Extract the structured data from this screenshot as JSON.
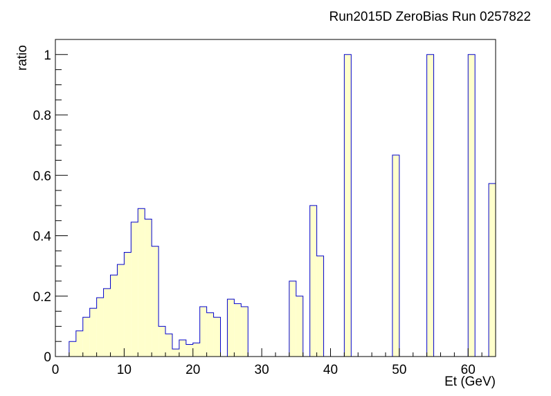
{
  "chart_data": {
    "type": "bar",
    "title": "Run2015D ZeroBias Run 0257822",
    "xlabel": "Et (GeV)",
    "ylabel": "ratio",
    "xlim": [
      0,
      64
    ],
    "ylim": [
      0,
      1.05
    ],
    "bin_width": 1,
    "x_ticks": [
      0,
      10,
      20,
      30,
      40,
      50,
      60
    ],
    "y_ticks": [
      0,
      0.2,
      0.4,
      0.6,
      0.8,
      1
    ],
    "y_tick_labels": [
      "0",
      "0.2",
      "0.4",
      "0.6",
      "0.8",
      "1"
    ],
    "grid": false,
    "fill_color": "#ffffcc",
    "line_color": "#0000cc",
    "bins": [
      {
        "x": 0,
        "y": 0
      },
      {
        "x": 1,
        "y": 0
      },
      {
        "x": 2,
        "y": 0.05
      },
      {
        "x": 3,
        "y": 0.085
      },
      {
        "x": 4,
        "y": 0.13
      },
      {
        "x": 5,
        "y": 0.16
      },
      {
        "x": 6,
        "y": 0.195
      },
      {
        "x": 7,
        "y": 0.225
      },
      {
        "x": 8,
        "y": 0.27
      },
      {
        "x": 9,
        "y": 0.305
      },
      {
        "x": 10,
        "y": 0.345
      },
      {
        "x": 11,
        "y": 0.445
      },
      {
        "x": 12,
        "y": 0.49
      },
      {
        "x": 13,
        "y": 0.455
      },
      {
        "x": 14,
        "y": 0.365
      },
      {
        "x": 15,
        "y": 0.1
      },
      {
        "x": 16,
        "y": 0.075
      },
      {
        "x": 17,
        "y": 0.025
      },
      {
        "x": 18,
        "y": 0.055
      },
      {
        "x": 19,
        "y": 0.04
      },
      {
        "x": 20,
        "y": 0.045
      },
      {
        "x": 21,
        "y": 0.165
      },
      {
        "x": 22,
        "y": 0.145
      },
      {
        "x": 23,
        "y": 0.13
      },
      {
        "x": 24,
        "y": 0
      },
      {
        "x": 25,
        "y": 0.19
      },
      {
        "x": 26,
        "y": 0.175
      },
      {
        "x": 27,
        "y": 0.165
      },
      {
        "x": 28,
        "y": 0
      },
      {
        "x": 29,
        "y": 0
      },
      {
        "x": 30,
        "y": 0
      },
      {
        "x": 31,
        "y": 0
      },
      {
        "x": 32,
        "y": 0
      },
      {
        "x": 33,
        "y": 0
      },
      {
        "x": 34,
        "y": 0.25
      },
      {
        "x": 35,
        "y": 0.2
      },
      {
        "x": 36,
        "y": 0
      },
      {
        "x": 37,
        "y": 0.5
      },
      {
        "x": 38,
        "y": 0.333
      },
      {
        "x": 39,
        "y": 0
      },
      {
        "x": 40,
        "y": 0
      },
      {
        "x": 41,
        "y": 0
      },
      {
        "x": 42,
        "y": 1.0
      },
      {
        "x": 43,
        "y": 0
      },
      {
        "x": 44,
        "y": 0
      },
      {
        "x": 45,
        "y": 0
      },
      {
        "x": 46,
        "y": 0
      },
      {
        "x": 47,
        "y": 0
      },
      {
        "x": 48,
        "y": 0
      },
      {
        "x": 49,
        "y": 0.667
      },
      {
        "x": 50,
        "y": 0
      },
      {
        "x": 51,
        "y": 0
      },
      {
        "x": 52,
        "y": 0
      },
      {
        "x": 53,
        "y": 0
      },
      {
        "x": 54,
        "y": 1.0
      },
      {
        "x": 55,
        "y": 0
      },
      {
        "x": 56,
        "y": 0
      },
      {
        "x": 57,
        "y": 0
      },
      {
        "x": 58,
        "y": 0
      },
      {
        "x": 59,
        "y": 0
      },
      {
        "x": 60,
        "y": 1.0
      },
      {
        "x": 61,
        "y": 0
      },
      {
        "x": 62,
        "y": 0
      },
      {
        "x": 63,
        "y": 0.573
      }
    ]
  }
}
